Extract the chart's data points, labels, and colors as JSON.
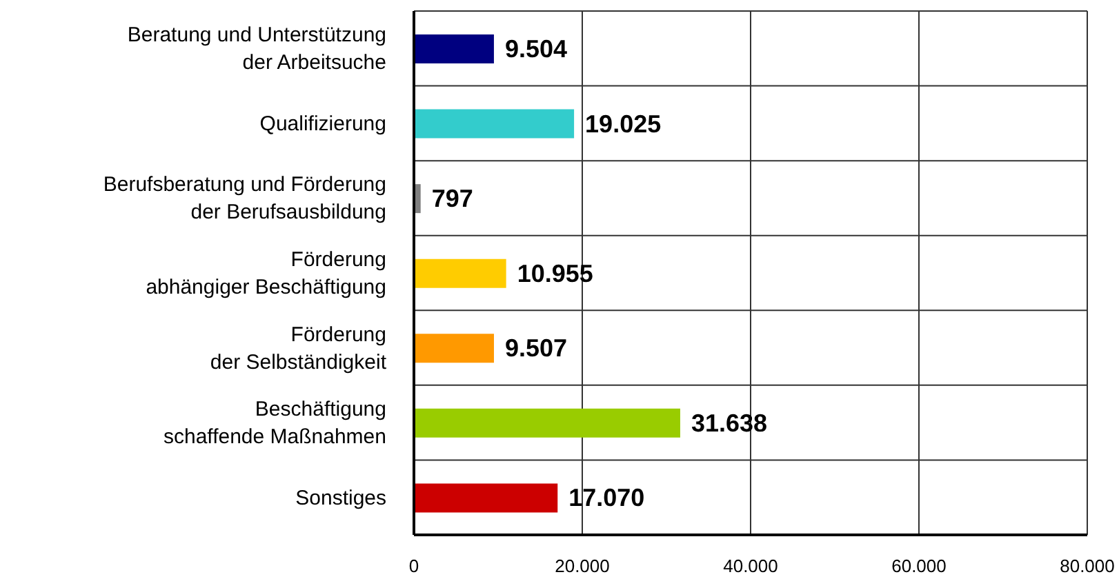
{
  "chart_data": {
    "type": "bar",
    "orientation": "horizontal",
    "categories": [
      "Beratung und Unterstützung\nder Arbeitsuche",
      "Qualifizierung",
      "Berufsberatung und Förderung\nder Berufsausbildung",
      "Förderung\nabhängiger Beschäftigung",
      "Förderung\nder Selbständigkeit",
      "Beschäftigung\nschaffende Maßnahmen",
      "Sonstiges"
    ],
    "values": [
      9504,
      19025,
      797,
      10955,
      9507,
      31638,
      17070
    ],
    "colors": [
      "#000080",
      "#33cccc",
      "#808080",
      "#ffcc00",
      "#ff9900",
      "#99cc00",
      "#cc0000"
    ],
    "value_labels": [
      "9.504",
      "19.025",
      "797",
      "10.955",
      "9.507",
      "31.638",
      "17.070"
    ],
    "xlim": [
      0,
      80000
    ],
    "xticks": [
      0,
      {
        "value": 20000,
        "label": "20.000"
      },
      {
        "value": 40000,
        "label": "40.000"
      },
      {
        "value": 60000,
        "label": "60.000"
      },
      {
        "value": 80000,
        "label": "80.000"
      }
    ],
    "grid": true
  }
}
